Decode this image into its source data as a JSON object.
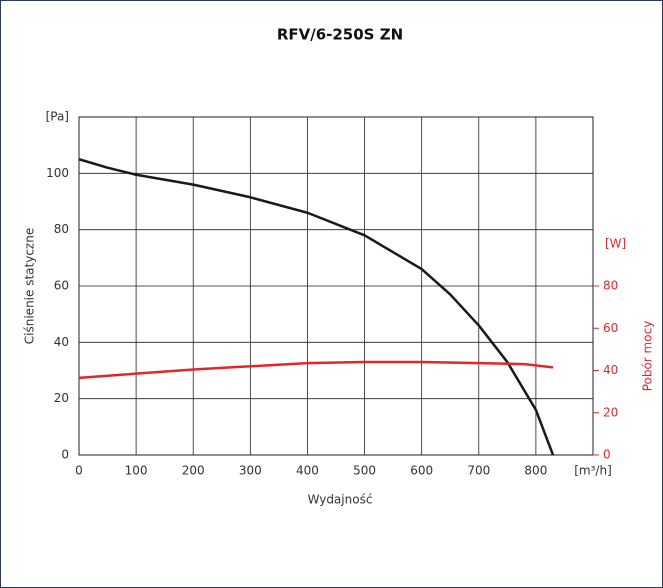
{
  "chart_data": {
    "type": "line",
    "title": "RFV/6-250S ZN",
    "x_label": "Wydajność",
    "y_label": "Ciśnienie statyczne",
    "y2_label": "Pobór mocy",
    "x_unit": "[m³/h]",
    "y_unit": "[Pa]",
    "y2_unit": "[W]",
    "xlim": [
      0,
      900
    ],
    "xticks": [
      0,
      100,
      200,
      300,
      400,
      500,
      600,
      700,
      800
    ],
    "ylim": [
      0,
      120
    ],
    "yticks": [
      0,
      20,
      40,
      60,
      80,
      100
    ],
    "y2lim": [
      0,
      160
    ],
    "y2ticks": [
      0,
      20,
      40,
      60,
      80
    ],
    "grid": true,
    "series": [
      {
        "name": "Ciśnienie statyczne",
        "color": "#1a1a1a",
        "x": [
          0,
          50,
          100,
          200,
          300,
          400,
          500,
          600,
          650,
          700,
          750,
          800,
          830
        ],
        "values": [
          105,
          102,
          99.5,
          96,
          91.5,
          86,
          78,
          66,
          57,
          46,
          33,
          16,
          0
        ]
      },
      {
        "name": "Pobór mocy",
        "color": "#e3262a",
        "axis": "y2",
        "x": [
          0,
          100,
          200,
          300,
          400,
          500,
          600,
          700,
          780,
          830
        ],
        "values": [
          36.5,
          38.5,
          40.5,
          42,
          43.5,
          44,
          44,
          43.5,
          43,
          41.5
        ]
      }
    ]
  }
}
